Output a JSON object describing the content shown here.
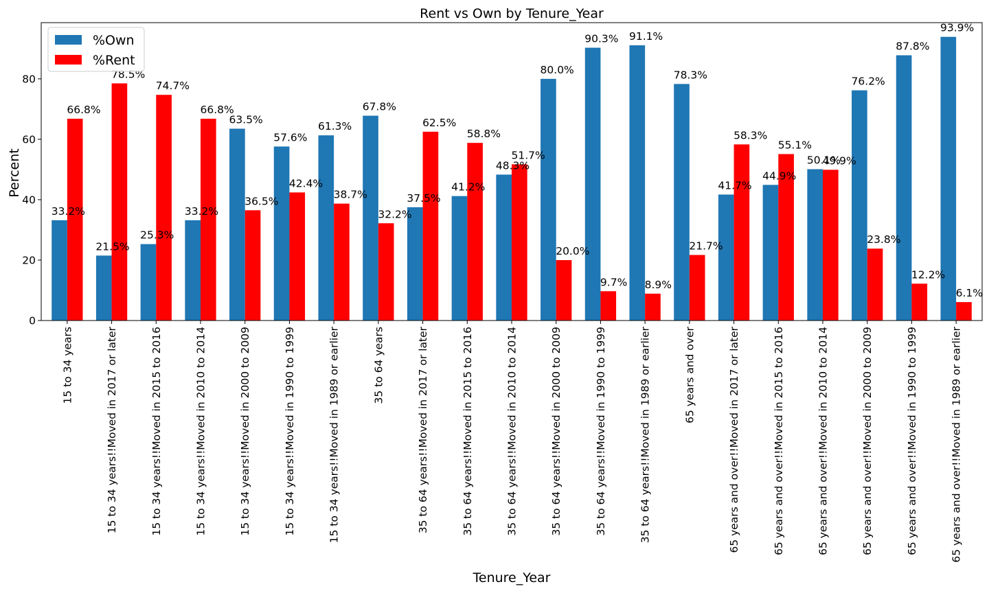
{
  "chart_data": {
    "type": "bar",
    "title": "Rent vs Own by Tenure_Year",
    "xlabel": "Tenure_Year",
    "ylabel": "Percent",
    "ylim": [
      0,
      98.6
    ],
    "yticks": [
      0,
      20,
      40,
      60,
      80
    ],
    "legend_position": "top-left",
    "grid": false,
    "categories": [
      "15 to 34 years",
      "15 to 34 years!!Moved in 2017 or later",
      "15 to 34 years!!Moved in 2015 to 2016",
      "15 to 34 years!!Moved in 2010 to 2014",
      "15 to 34 years!!Moved in 2000 to 2009",
      "15 to 34 years!!Moved in 1990 to 1999",
      "15 to 34 years!!Moved in 1989 or earlier",
      "35 to 64 years",
      "35 to 64 years!!Moved in 2017 or later",
      "35 to 64 years!!Moved in 2015 to 2016",
      "35 to 64 years!!Moved in 2010 to 2014",
      "35 to 64 years!!Moved in 2000 to 2009",
      "35 to 64 years!!Moved in 1990 to 1999",
      "35 to 64 years!!Moved in 1989 or earlier",
      "65 years and over",
      "65 years and over!!Moved in 2017 or later",
      "65 years and over!!Moved in 2015 to 2016",
      "65 years and over!!Moved in 2010 to 2014",
      "65 years and over!!Moved in 2000 to 2009",
      "65 years and over!!Moved in 1990 to 1999",
      "65 years and over!!Moved in 1989 or earlier"
    ],
    "series": [
      {
        "name": "%Own",
        "color": "#1f77b4",
        "values": [
          33.2,
          21.5,
          25.3,
          33.2,
          63.5,
          57.6,
          61.3,
          67.8,
          37.5,
          41.2,
          48.3,
          80.0,
          90.3,
          91.1,
          78.3,
          41.7,
          44.9,
          50.1,
          76.2,
          87.8,
          93.9
        ],
        "labels": [
          "33.2%",
          "21.5%",
          "25.3%",
          "33.2%",
          "63.5%",
          "57.6%",
          "61.3%",
          "67.8%",
          "37.5%",
          "41.2%",
          "48.3%",
          "80.0%",
          "90.3%",
          "91.1%",
          "78.3%",
          "41.7%",
          "44.9%",
          "50.1%",
          "76.2%",
          "87.8%",
          "93.9%"
        ]
      },
      {
        "name": "%Rent",
        "color": "#ff0000",
        "values": [
          66.8,
          78.5,
          74.7,
          66.8,
          36.5,
          42.4,
          38.7,
          32.2,
          62.5,
          58.8,
          51.7,
          20.0,
          9.7,
          8.9,
          21.7,
          58.3,
          55.1,
          49.9,
          23.8,
          12.2,
          6.1
        ],
        "labels": [
          "66.8%",
          "78.5%",
          "74.7%",
          "66.8%",
          "36.5%",
          "42.4%",
          "38.7%",
          "32.2%",
          "62.5%",
          "58.8%",
          "51.7%",
          "20.0%",
          "9.7%",
          "8.9%",
          "21.7%",
          "58.3%",
          "55.1%",
          "49.9%",
          "23.8%",
          "12.2%",
          "6.1%"
        ]
      }
    ]
  }
}
